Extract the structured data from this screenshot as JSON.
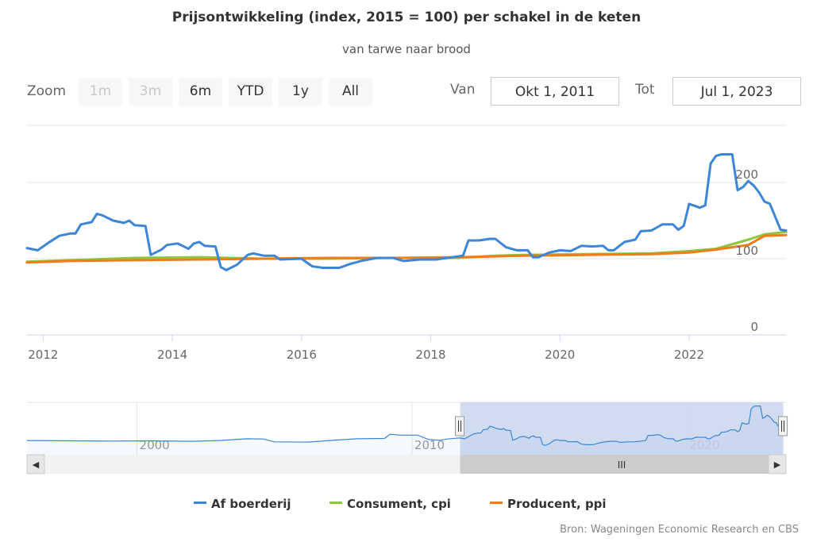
{
  "header": {
    "title": "Prijsontwikkeling (index, 2015 = 100) per schakel in de keten",
    "subtitle": "van tarwe naar brood"
  },
  "range_selector": {
    "zoom_label": "Zoom",
    "buttons": [
      "1m",
      "3m",
      "6m",
      "YTD",
      "1y",
      "All"
    ],
    "disabled": [
      true,
      true,
      false,
      false,
      false,
      false
    ],
    "from_label": "Van",
    "from_value": "Okt 1, 2011",
    "to_label": "Tot",
    "to_value": "Jul 1, 2023"
  },
  "navigator": {
    "labels": [
      "2000",
      "2010",
      "2020"
    ],
    "handle_symbol": "II",
    "scrollbar_grip": "III",
    "scroll_left_arrow": "◀",
    "scroll_right_arrow": "▶"
  },
  "credits": "Bron: Wageningen Economic Research en CBS",
  "colors": {
    "farm": "#3d85d6",
    "cpi": "#8cc63f",
    "ppi": "#f07c1b",
    "navigator_fill": "#c9d6ee"
  },
  "chart_data": {
    "type": "line",
    "title": "Prijsontwikkeling (index, 2015 = 100) per schakel in de keten",
    "subtitle": "van tarwe naar brood",
    "xlabel": "",
    "ylabel": "",
    "x_range": [
      "2011-10",
      "2023-07"
    ],
    "y_ticks": [
      0,
      100,
      200
    ],
    "x_ticks": [
      "2012",
      "2014",
      "2016",
      "2018",
      "2020",
      "2022"
    ],
    "ylim": [
      0,
      275
    ],
    "grid": true,
    "legend": "bottom-center",
    "series": [
      {
        "name": "Af boerderij",
        "points": [
          [
            "2011-10",
            114
          ],
          [
            "2011-12",
            111
          ],
          [
            "2012-02",
            121
          ],
          [
            "2012-04",
            130
          ],
          [
            "2012-06",
            133
          ],
          [
            "2012-07",
            133
          ],
          [
            "2012-08",
            145
          ],
          [
            "2012-10",
            148
          ],
          [
            "2012-11",
            159
          ],
          [
            "2012-12",
            157
          ],
          [
            "2013-02",
            150
          ],
          [
            "2013-04",
            147
          ],
          [
            "2013-05",
            150
          ],
          [
            "2013-06",
            144
          ],
          [
            "2013-08",
            143
          ],
          [
            "2013-09",
            105
          ],
          [
            "2013-11",
            112
          ],
          [
            "2013-12",
            118
          ],
          [
            "2014-02",
            120
          ],
          [
            "2014-04",
            113
          ],
          [
            "2014-05",
            120
          ],
          [
            "2014-06",
            122
          ],
          [
            "2014-07",
            117
          ],
          [
            "2014-09",
            116
          ],
          [
            "2014-10",
            89
          ],
          [
            "2014-11",
            85
          ],
          [
            "2015-01",
            92
          ],
          [
            "2015-03",
            105
          ],
          [
            "2015-04",
            107
          ],
          [
            "2015-06",
            104
          ],
          [
            "2015-08",
            104
          ],
          [
            "2015-09",
            99
          ],
          [
            "2016-01",
            100
          ],
          [
            "2016-03",
            90
          ],
          [
            "2016-05",
            88
          ],
          [
            "2016-08",
            88
          ],
          [
            "2016-10",
            93
          ],
          [
            "2016-12",
            97
          ],
          [
            "2017-03",
            101
          ],
          [
            "2017-06",
            101
          ],
          [
            "2017-08",
            97
          ],
          [
            "2017-11",
            99
          ],
          [
            "2018-02",
            99
          ],
          [
            "2018-05",
            102
          ],
          [
            "2018-07",
            104
          ],
          [
            "2018-08",
            124
          ],
          [
            "2018-10",
            124
          ],
          [
            "2018-12",
            126
          ],
          [
            "2019-01",
            126
          ],
          [
            "2019-03",
            115
          ],
          [
            "2019-05",
            111
          ],
          [
            "2019-07",
            111
          ],
          [
            "2019-08",
            102
          ],
          [
            "2019-09",
            102
          ],
          [
            "2019-11",
            108
          ],
          [
            "2020-01",
            111
          ],
          [
            "2020-03",
            110
          ],
          [
            "2020-05",
            117
          ],
          [
            "2020-07",
            116
          ],
          [
            "2020-09",
            117
          ],
          [
            "2020-10",
            111
          ],
          [
            "2020-11",
            111
          ],
          [
            "2021-01",
            122
          ],
          [
            "2021-03",
            125
          ],
          [
            "2021-04",
            136
          ],
          [
            "2021-06",
            137
          ],
          [
            "2021-08",
            145
          ],
          [
            "2021-10",
            145
          ],
          [
            "2021-11",
            138
          ],
          [
            "2021-12",
            143
          ],
          [
            "2022-01",
            172
          ],
          [
            "2022-03",
            167
          ],
          [
            "2022-04",
            170
          ],
          [
            "2022-05",
            225
          ],
          [
            "2022-06",
            235
          ],
          [
            "2022-07",
            237
          ],
          [
            "2022-09",
            237
          ],
          [
            "2022-10",
            190
          ],
          [
            "2022-11",
            194
          ],
          [
            "2022-12",
            202
          ],
          [
            "2023-01",
            196
          ],
          [
            "2023-02",
            187
          ],
          [
            "2023-03",
            175
          ],
          [
            "2023-04",
            172
          ],
          [
            "2023-05",
            155
          ],
          [
            "2023-06",
            138
          ],
          [
            "2023-07",
            137
          ]
        ]
      },
      {
        "name": "Consument, cpi",
        "points": [
          [
            "2011-10",
            96
          ],
          [
            "2012-06",
            98
          ],
          [
            "2013-06",
            101
          ],
          [
            "2014-06",
            102
          ],
          [
            "2015-06",
            100
          ],
          [
            "2016-06",
            100
          ],
          [
            "2017-06",
            101
          ],
          [
            "2018-06",
            101
          ],
          [
            "2019-01",
            104
          ],
          [
            "2019-06",
            105
          ],
          [
            "2020-06",
            106
          ],
          [
            "2021-06",
            107
          ],
          [
            "2022-01",
            110
          ],
          [
            "2022-06",
            113
          ],
          [
            "2022-12",
            125
          ],
          [
            "2023-03",
            132
          ],
          [
            "2023-07",
            135
          ]
        ]
      },
      {
        "name": "Producent, ppi",
        "points": [
          [
            "2011-10",
            95
          ],
          [
            "2012-06",
            97
          ],
          [
            "2013-06",
            98
          ],
          [
            "2014-06",
            99
          ],
          [
            "2015-06",
            100
          ],
          [
            "2016-06",
            101
          ],
          [
            "2017-06",
            101
          ],
          [
            "2018-06",
            102
          ],
          [
            "2019-01",
            103
          ],
          [
            "2019-06",
            104
          ],
          [
            "2020-06",
            105
          ],
          [
            "2021-06",
            106
          ],
          [
            "2022-01",
            108
          ],
          [
            "2022-06",
            112
          ],
          [
            "2022-12",
            118
          ],
          [
            "2023-03",
            130
          ],
          [
            "2023-07",
            131
          ]
        ]
      }
    ]
  }
}
